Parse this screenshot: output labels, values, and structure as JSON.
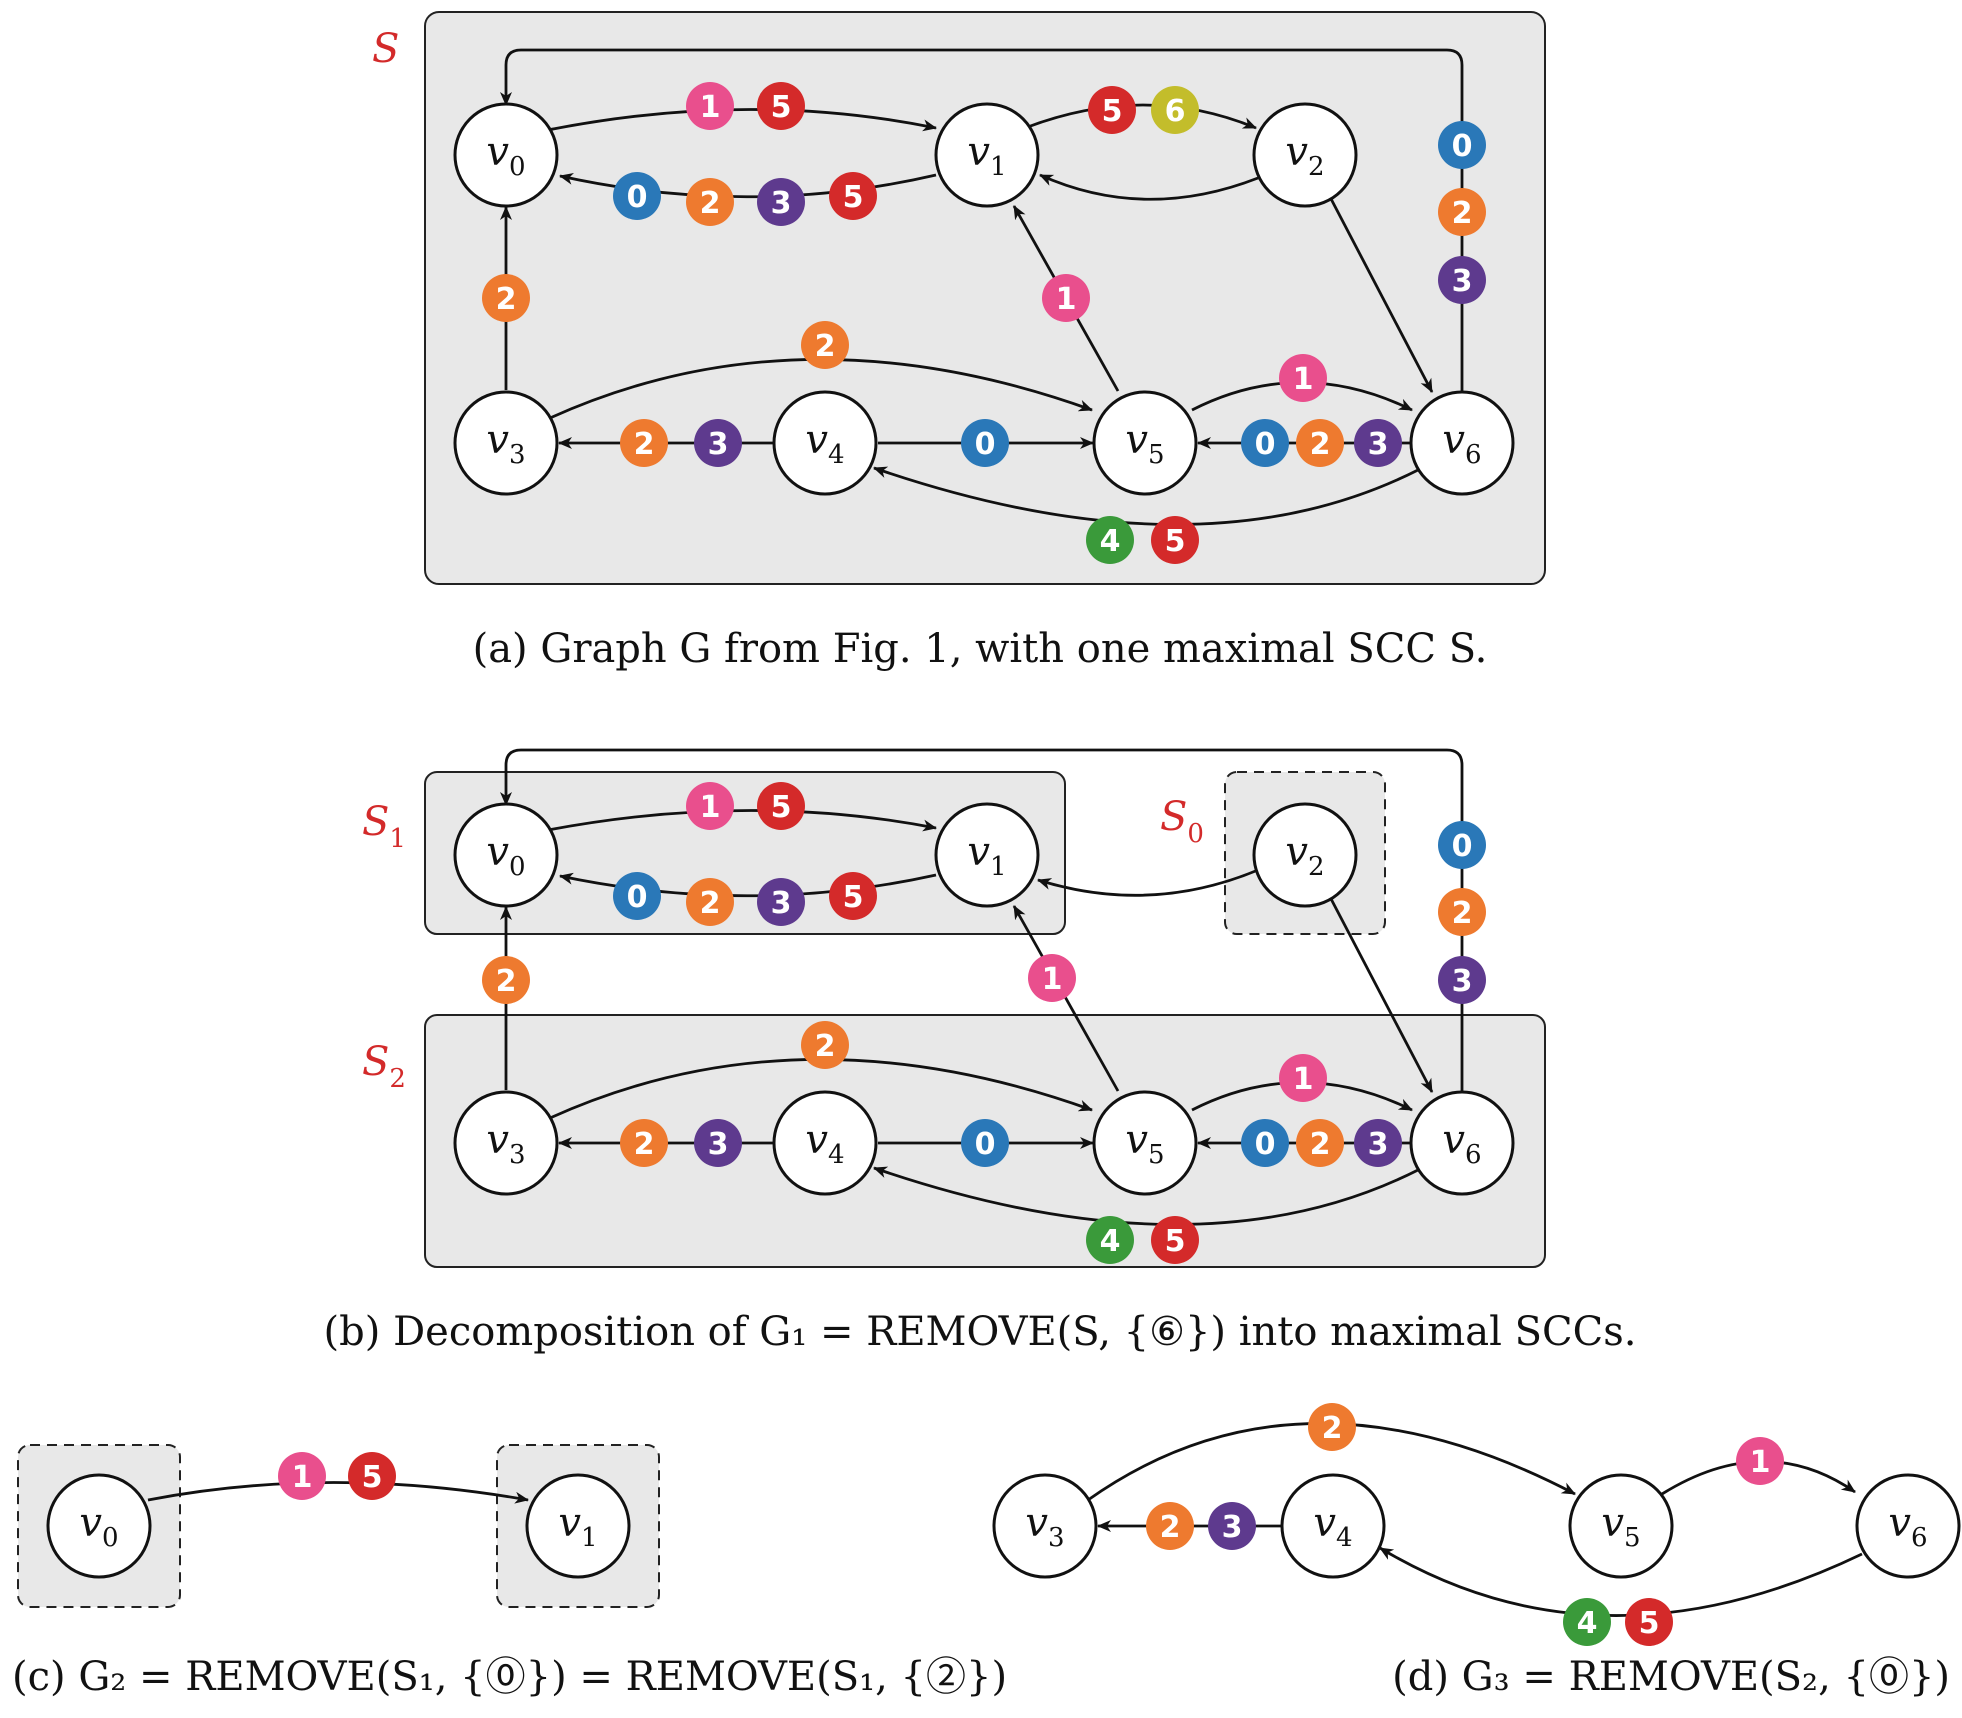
{
  "colors": {
    "0": "#2a78b8",
    "1": "#e94f8d",
    "2": "#ee7a2f",
    "3": "#5e3a8e",
    "4": "#3a9a3a",
    "5": "#d42a2a",
    "6": "#c3bd2b",
    "scc": "#d32a2a"
  },
  "panel_a": {
    "box_label": "S",
    "caption": "(a) Graph G from Fig. 1, with one maximal SCC S."
  },
  "panel_b": {
    "box_labels": [
      {
        "base": "S",
        "sub": "1"
      },
      {
        "base": "S",
        "sub": "0"
      },
      {
        "base": "S",
        "sub": "2"
      }
    ],
    "caption": "(b) Decomposition of G₁ = REMOVE(S, {⑥}) into maximal SCCs."
  },
  "panel_c": {
    "caption": "(c) G₂ = REMOVE(S₁, {⓪}) = REMOVE(S₁, {②})"
  },
  "panel_d": {
    "caption": "(d) G₃ = REMOVE(S₂, {⓪})"
  },
  "nodes": [
    "v0",
    "v1",
    "v2",
    "v3",
    "v4",
    "v5",
    "v6"
  ],
  "edges_full": [
    {
      "from": "v0",
      "to": "v1",
      "labels": [
        "1",
        "5"
      ]
    },
    {
      "from": "v1",
      "to": "v0",
      "labels": [
        "0",
        "2",
        "3",
        "5"
      ]
    },
    {
      "from": "v1",
      "to": "v2",
      "labels": [
        "5",
        "6"
      ]
    },
    {
      "from": "v2",
      "to": "v1",
      "labels": []
    },
    {
      "from": "v2",
      "to": "v6",
      "labels": []
    },
    {
      "from": "v6",
      "to": "v0",
      "labels": [
        "0",
        "2",
        "3"
      ]
    },
    {
      "from": "v3",
      "to": "v0",
      "labels": [
        "2"
      ]
    },
    {
      "from": "v5",
      "to": "v1",
      "labels": [
        "1"
      ]
    },
    {
      "from": "v3",
      "to": "v5",
      "labels": [
        "2"
      ]
    },
    {
      "from": "v4",
      "to": "v3",
      "labels": [
        "2",
        "3"
      ]
    },
    {
      "from": "v4",
      "to": "v5",
      "labels": [
        "0"
      ]
    },
    {
      "from": "v5",
      "to": "v6",
      "labels": [
        "1"
      ]
    },
    {
      "from": "v6",
      "to": "v5",
      "labels": [
        "0",
        "2",
        "3"
      ]
    },
    {
      "from": "v6",
      "to": "v4",
      "labels": [
        "4",
        "5"
      ]
    }
  ]
}
